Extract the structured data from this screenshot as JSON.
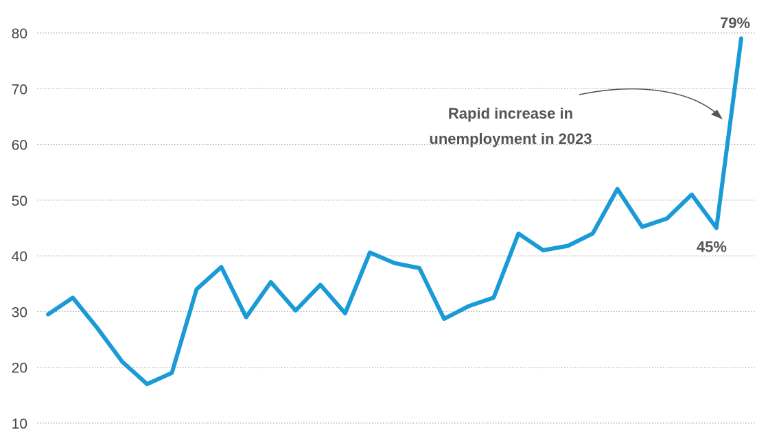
{
  "chart_data": {
    "type": "line",
    "title": "",
    "xlabel": "",
    "ylabel": "",
    "ylim": [
      10,
      80
    ],
    "yticks": [
      10,
      20,
      30,
      40,
      50,
      60,
      70,
      80
    ],
    "grid": true,
    "series": [
      {
        "values": [
          29.5,
          32.5,
          27,
          21,
          17,
          19,
          34,
          38,
          29,
          35.3,
          30.2,
          34.8,
          29.7,
          40.6,
          38.7,
          37.8,
          28.7,
          31,
          32.5,
          44,
          41,
          41.8,
          44,
          52,
          45.2,
          46.7,
          51,
          45,
          79
        ]
      }
    ],
    "data_labels": [
      {
        "point_index": 28,
        "text": "79%"
      },
      {
        "point_index": 27,
        "text": "45%"
      }
    ],
    "annotation": {
      "lines": [
        "Rapid increase in",
        "unemployment in 2023"
      ]
    },
    "colors": {
      "line": "#1a9ad6",
      "text": "#555555",
      "grid": "#9a9a9a"
    }
  }
}
